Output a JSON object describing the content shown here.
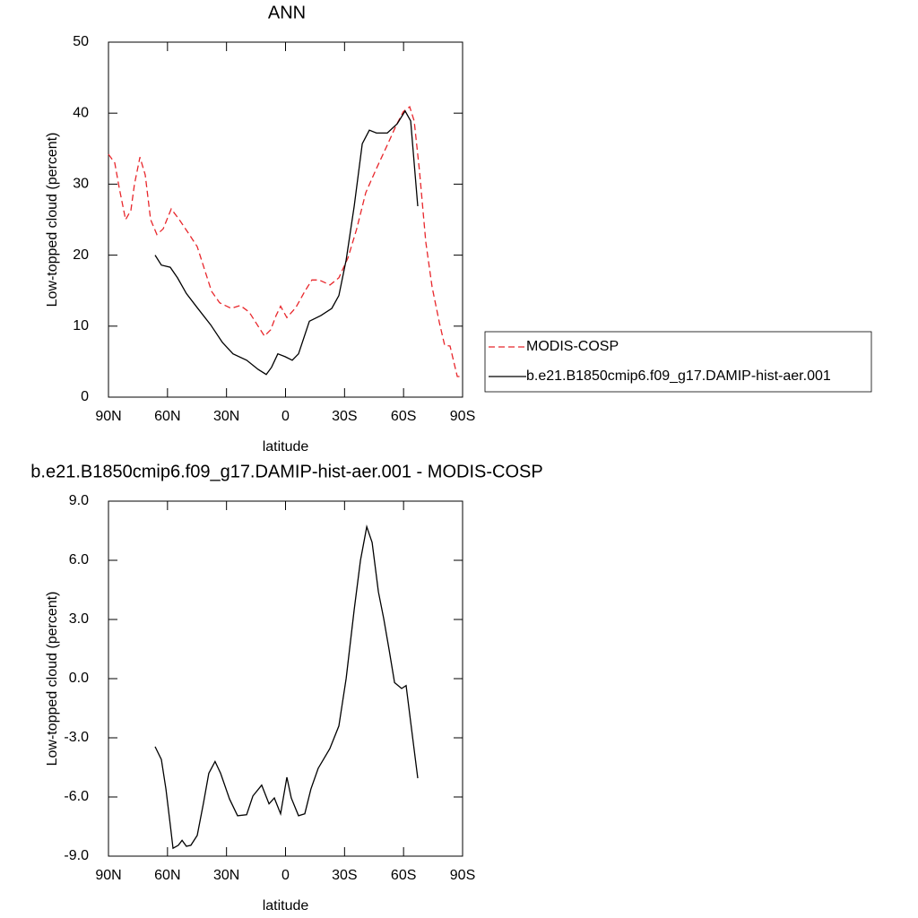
{
  "chart_data": [
    {
      "type": "line",
      "title": "ANN",
      "x_label": "latitude",
      "y_label": "Low-topped cloud (percent)",
      "xlim": [
        90,
        -90
      ],
      "xticks": [
        {
          "value": 90,
          "label": "90N"
        },
        {
          "value": 60,
          "label": "60N"
        },
        {
          "value": 30,
          "label": "30N"
        },
        0,
        {
          "value": -30,
          "label": "30S"
        },
        {
          "value": -60,
          "label": "60S"
        },
        {
          "value": -90,
          "label": "90S"
        }
      ],
      "ylim": [
        0,
        50
      ],
      "yticks": [
        0,
        10,
        20,
        30,
        40,
        50
      ],
      "legend": "right",
      "series": [
        {
          "name": "MODIS-COSP",
          "color": "#e8262b",
          "dashed": true,
          "x": [
            90,
            86.8,
            84.5,
            81.3,
            78.6,
            76.8,
            74,
            71.3,
            68.6,
            65.4,
            62.2,
            58.1,
            54,
            49.4,
            44.9,
            41.2,
            37.6,
            33.5,
            27.6,
            23,
            18.5,
            14.4,
            10.7,
            7.5,
            4.8,
            2.5,
            -0.7,
            -5.2,
            -9.8,
            -13.4,
            -17.1,
            -22.6,
            -27.1,
            -31.7,
            -36.2,
            -40.8,
            -46.2,
            -51.7,
            -56.3,
            -59.9,
            -63.1,
            -65.4,
            -68.1,
            -71.3,
            -74.5,
            -78.2,
            -80.9,
            -83.6,
            -87.3,
            -90
          ],
          "values": [
            34.2,
            33,
            29.4,
            25,
            26.3,
            30,
            33.8,
            31.3,
            25,
            22.9,
            23.7,
            26.5,
            25,
            23.1,
            21.2,
            18,
            14.9,
            13.3,
            12.5,
            12.9,
            12,
            10.2,
            8.6,
            9.5,
            11.5,
            12.8,
            11.2,
            12.6,
            14.9,
            16.5,
            16.5,
            15.8,
            16.8,
            19.6,
            23.7,
            28.8,
            32.2,
            35.5,
            38.3,
            40.2,
            40.9,
            38.9,
            31.9,
            21.8,
            15.5,
            10.5,
            7.3,
            7.2,
            2.9,
            2.9
          ]
        },
        {
          "name": "b.e21.B1850cmip6.f09_g17.DAMIP-hist-aer.001",
          "color": "#000000",
          "dashed": false,
          "x": [
            66.3,
            63.1,
            58.6,
            54.9,
            50.4,
            44.9,
            38.1,
            32.1,
            26.7,
            19.8,
            13.9,
            9.8,
            7.1,
            3.9,
            0.2,
            -3.4,
            -6.6,
            -12.1,
            -18,
            -23.5,
            -27.1,
            -30.8,
            -34.9,
            -39,
            -42.6,
            -46.2,
            -51.7,
            -56.8,
            -60.8,
            -63.6,
            -67.2
          ],
          "values": [
            20,
            18.6,
            18.3,
            16.8,
            14.6,
            12.6,
            10.2,
            7.7,
            6.1,
            5.2,
            3.9,
            3.2,
            4.2,
            6.1,
            5.7,
            5.2,
            6.1,
            10.7,
            11.5,
            12.5,
            14.3,
            19.3,
            26.9,
            35.7,
            37.6,
            37.2,
            37.2,
            38.5,
            40.3,
            38.9,
            26.9
          ]
        }
      ]
    },
    {
      "type": "line",
      "title": "b.e21.B1850cmip6.f09_g17.DAMIP-hist-aer.001 - MODIS-COSP",
      "x_label": "latitude",
      "y_label": "Low-topped cloud (percent)",
      "xlim": [
        90,
        -90
      ],
      "xticks": [
        {
          "value": 90,
          "label": "90N"
        },
        {
          "value": 60,
          "label": "60N"
        },
        {
          "value": 30,
          "label": "30N"
        },
        0,
        {
          "value": -30,
          "label": "30S"
        },
        {
          "value": -60,
          "label": "60S"
        },
        {
          "value": -90,
          "label": "90S"
        }
      ],
      "ylim": [
        -9,
        9
      ],
      "yticks": [
        {
          "value": -9,
          "label": "-9.0"
        },
        {
          "value": -6,
          "label": "-6.0"
        },
        {
          "value": -3,
          "label": "-3.0"
        },
        {
          "value": 0,
          "label": "0.0"
        },
        {
          "value": 3,
          "label": "3.0"
        },
        {
          "value": 6,
          "label": "6.0"
        },
        {
          "value": 9,
          "label": "9.0"
        }
      ],
      "series": [
        {
          "color": "#000000",
          "dashed": false,
          "x": [
            66.3,
            63.1,
            60.8,
            58.6,
            57.2,
            54.5,
            52.6,
            50.4,
            48.1,
            44.9,
            41.7,
            39,
            35.8,
            33,
            28.5,
            24.4,
            19.8,
            16.6,
            12.1,
            8.4,
            5.7,
            2.5,
            -0.7,
            -2.9,
            -6.6,
            -9.8,
            -12.9,
            -16.6,
            -22.5,
            -27.1,
            -30.8,
            -34.9,
            -38.1,
            -41.3,
            -44,
            -47.2,
            -49.9,
            -52.7,
            -55.4,
            -59,
            -61.3,
            -63.6,
            -67.2
          ],
          "values": [
            -3.45,
            -4.1,
            -5.6,
            -7.4,
            -8.6,
            -8.45,
            -8.2,
            -8.5,
            -8.45,
            -7.95,
            -6.3,
            -4.8,
            -4.2,
            -4.8,
            -6.1,
            -6.95,
            -6.9,
            -5.95,
            -5.4,
            -6.35,
            -6.05,
            -6.85,
            -5.0,
            -6.05,
            -6.95,
            -6.85,
            -5.6,
            -4.55,
            -3.55,
            -2.4,
            0,
            3.5,
            6,
            7.7,
            6.9,
            4.4,
            3.05,
            1.45,
            -0.2,
            -0.5,
            -0.35,
            -2.2,
            -5.05
          ]
        }
      ]
    }
  ]
}
